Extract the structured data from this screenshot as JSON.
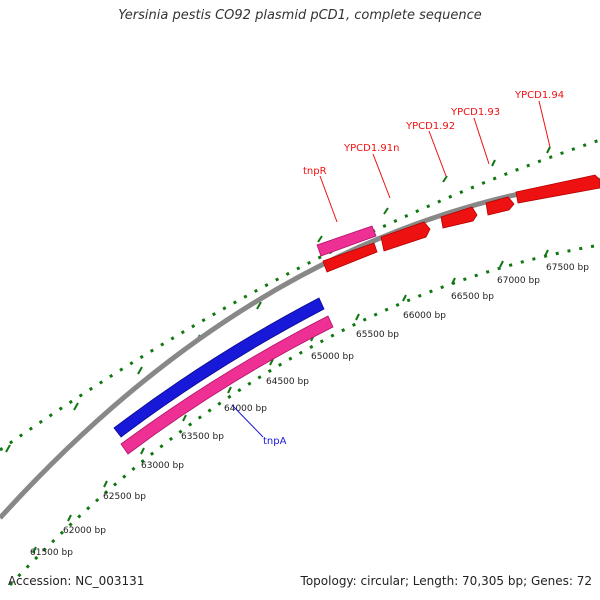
{
  "title": "Yersinia pestis CO92 plasmid pCD1, complete sequence",
  "accession": "Accession: NC_003131",
  "summary": "Topology: circular; Length: 70,305 bp; Genes: 72",
  "backbone_color": "#888888",
  "tick_color": "#117711",
  "feature_colors": {
    "red": "#ee1111",
    "pink": "#ee2f93",
    "blue": "#1818d8"
  },
  "bp_labels": [
    "61500 bp",
    "62000 bp",
    "62500 bp",
    "63000 bp",
    "63500 bp",
    "64000 bp",
    "64500 bp",
    "65000 bp",
    "65500 bp",
    "66000 bp",
    "66500 bp",
    "67000 bp",
    "67500 bp"
  ],
  "gene_labels": {
    "tnpR": "tnpR",
    "ypcd191n": "YPCD1.91n",
    "ypcd192": "YPCD1.92",
    "ypcd193": "YPCD1.93",
    "ypcd194": "YPCD1.94",
    "tnpA": "tnpA"
  }
}
